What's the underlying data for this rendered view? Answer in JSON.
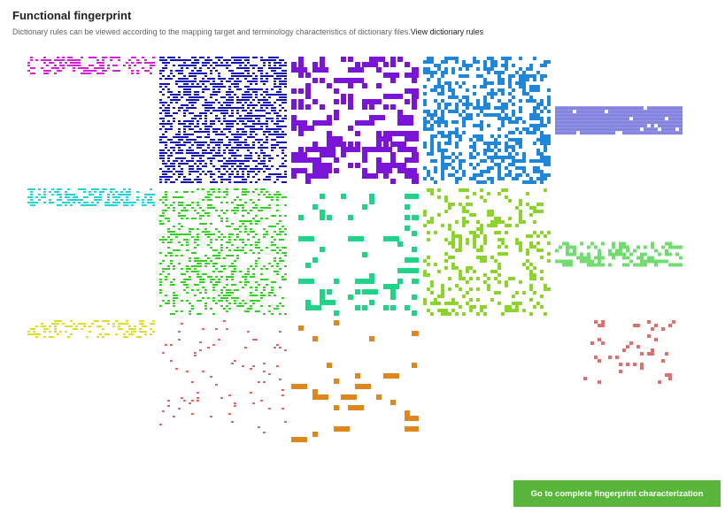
{
  "header": {
    "title": "Functional fingerprint",
    "description": "Dictionary rules can be viewed according to the mapping target and terminology characteristics of dictionary files.",
    "link_label": "View dictionary rules"
  },
  "fingerprint": {
    "tiles": [
      {
        "id": "r1c1",
        "color": "#d61fd6",
        "density": 0.45,
        "dot": "small",
        "band": [
          0.0,
          0.15
        ]
      },
      {
        "id": "r1c2",
        "color": "#1010b8",
        "density": 0.55,
        "dot": "small",
        "band": [
          0.0,
          1.0
        ]
      },
      {
        "id": "r1c3",
        "color": "#7a14d8",
        "density": 0.35,
        "dot": "large",
        "band": [
          0.0,
          1.0
        ]
      },
      {
        "id": "r1c4",
        "color": "#1f86d8",
        "density": 0.4,
        "dot": "medium",
        "band": [
          0.0,
          1.0
        ]
      },
      {
        "id": "r1c5",
        "color": "#8585e0",
        "density": 0.95,
        "dot": "medium",
        "band": [
          0.39,
          0.6
        ]
      },
      {
        "id": "r2c1",
        "color": "#1fd3d8",
        "density": 0.5,
        "dot": "small",
        "band": [
          0.0,
          0.15
        ]
      },
      {
        "id": "r2c2",
        "color": "#2fd21f",
        "density": 0.28,
        "dot": "small",
        "band": [
          0.0,
          1.0
        ]
      },
      {
        "id": "r2c3",
        "color": "#1fd487",
        "density": 0.15,
        "dot": "large",
        "band": [
          0.0,
          1.0
        ]
      },
      {
        "id": "r2c4",
        "color": "#8bd42a",
        "density": 0.22,
        "dot": "medium",
        "band": [
          0.0,
          1.0
        ]
      },
      {
        "id": "r2c5",
        "color": "#72dc72",
        "density": 0.45,
        "dot": "medium",
        "band": [
          0.42,
          0.6
        ]
      },
      {
        "id": "r3c1",
        "color": "#e0dc1f",
        "density": 0.35,
        "dot": "small",
        "band": [
          0.0,
          0.15
        ]
      },
      {
        "id": "r3c2",
        "color": "#e06666",
        "density": 0.03,
        "dot": "small",
        "band": [
          0.0,
          0.9
        ]
      },
      {
        "id": "r3c3",
        "color": "#e0861f",
        "density": 0.05,
        "dot": "large",
        "band": [
          0.0,
          1.0
        ]
      },
      {
        "id": "r3c4",
        "color": "#c050c0",
        "density": 0.0,
        "dot": "small",
        "band": [
          0.0,
          0.1
        ]
      },
      {
        "id": "r3c5",
        "color": "#e07070",
        "density": 0.04,
        "dot": "medium",
        "band": [
          0.0,
          0.5
        ]
      }
    ]
  },
  "actions": {
    "primary_label": "Go to complete fingerprint characterization",
    "primary_color": "#59b63b"
  }
}
